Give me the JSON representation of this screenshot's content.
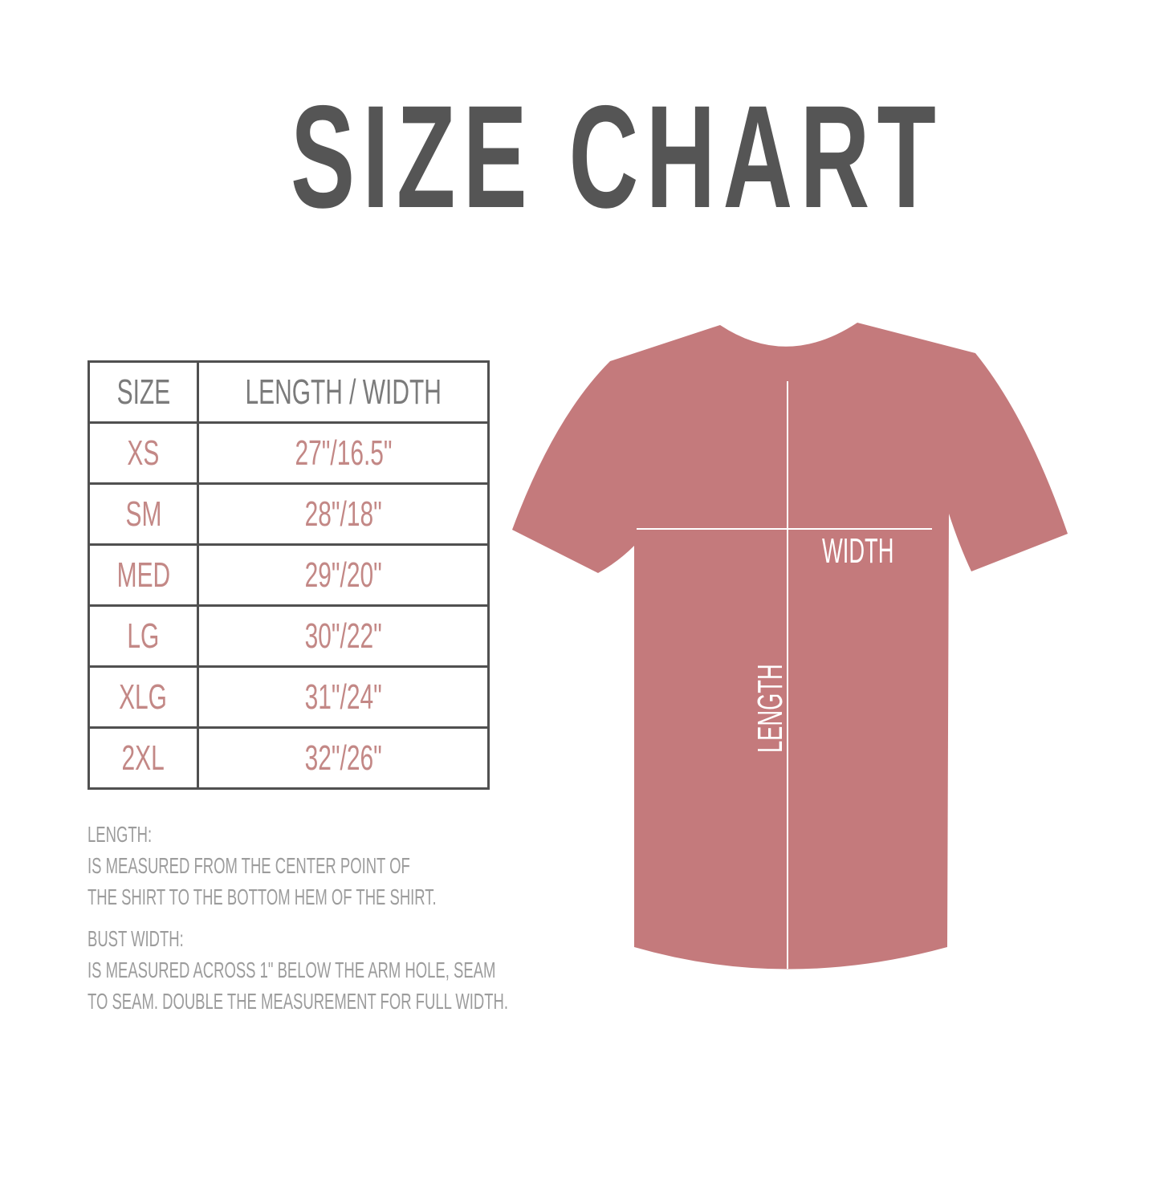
{
  "title": "SIZE CHART",
  "table": {
    "headers": [
      "SIZE",
      "LENGTH / WIDTH"
    ],
    "rows": [
      {
        "size": "XS",
        "measure": "27\"/16.5\""
      },
      {
        "size": "SM",
        "measure": "28\"/18\""
      },
      {
        "size": "MED",
        "measure": "29\"/20\""
      },
      {
        "size": "LG",
        "measure": "30\"/22\""
      },
      {
        "size": "XLG",
        "measure": "31\"/24\""
      },
      {
        "size": "2XL",
        "measure": "32\"/26\""
      }
    ]
  },
  "notes": {
    "length_heading": "LENGTH:",
    "length_line1": "IS MEASURED FROM THE CENTER POINT OF",
    "length_line2": "THE SHIRT TO THE BOTTOM HEM OF THE SHIRT.",
    "width_heading": "BUST WIDTH:",
    "width_line1": "IS MEASURED ACROSS  1\" BELOW THE ARM HOLE, SEAM",
    "width_line2": "TO SEAM. DOUBLE THE MEASUREMENT FOR FULL WIDTH."
  },
  "shirt": {
    "width_label": "WIDTH",
    "length_label": "LENGTH",
    "color": "#c47a7c"
  },
  "colors": {
    "title": "#555555",
    "value_text": "#c38886",
    "header_text": "#7b7b7b",
    "note_text": "#9c9c9c"
  }
}
